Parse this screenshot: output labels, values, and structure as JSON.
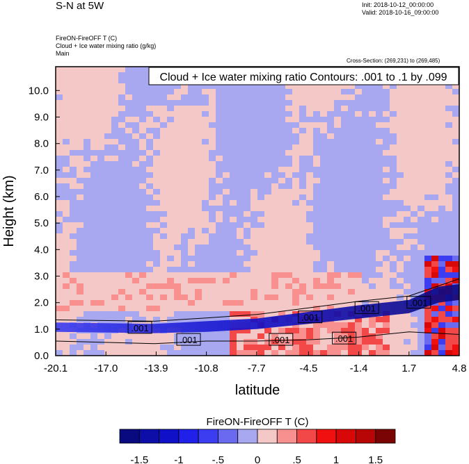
{
  "header": {
    "title": "S-N at 5W",
    "init": "Init: 2018-10-12_00:00:00",
    "valid": "Valid: 2018-10-16_09:00:00",
    "field_line_1": "FireON-FireOFF T   (C)",
    "field_line_2": "Cloud + Ice water mixing ratio   (g/kg)",
    "field_line_3": "Main",
    "cross_section": "Cross-Section: (269,231) to (269,485)"
  },
  "contour_info": "Cloud + Ice water mixing ratio Contours: .001 to .1 by .099",
  "colorbar": {
    "title": "FireON-FireOFF T  (C)",
    "colors": [
      "#0a0a80",
      "#0d0da8",
      "#1010c8",
      "#2020e8",
      "#3c3cf0",
      "#6a6af0",
      "#a8a8f0",
      "#f5c8c8",
      "#f89090",
      "#f24848",
      "#f01010",
      "#d80808",
      "#b80606",
      "#7a0303"
    ],
    "tick_labels": [
      "-1.5",
      "-1",
      "-.5",
      "0",
      ".5",
      "1",
      "1.5"
    ]
  },
  "chart_data": {
    "type": "heatmap",
    "title": "",
    "xlabel": "latitude",
    "ylabel": "Height (km)",
    "x_ticks": [
      "-20.1",
      "-17.0",
      "-13.9",
      "-10.8",
      "-7.7",
      "-4.5",
      "-1.4",
      "1.7",
      "4.8"
    ],
    "x_range": [
      -20.1,
      4.8
    ],
    "y_ticks": [
      "0.0",
      "1.0",
      "2.0",
      "3.0",
      "4.0",
      "5.0",
      "6.0",
      "7.0",
      "8.0",
      "9.0",
      "10.0"
    ],
    "y_range": [
      0.0,
      10.9
    ],
    "contour_labels": [
      {
        "text": ".001",
        "lat": -14.9,
        "height": 1.05
      },
      {
        "text": ".001",
        "lat": -11.9,
        "height": 0.6
      },
      {
        "text": ".001",
        "lat": -6.2,
        "height": 0.6
      },
      {
        "text": ".001",
        "lat": -4.4,
        "height": 1.45
      },
      {
        "text": ".001",
        "lat": -2.3,
        "height": 0.65
      },
      {
        "text": ".001",
        "lat": -0.9,
        "height": 1.8
      },
      {
        "text": ".001",
        "lat": 2.3,
        "height": 2.0
      }
    ]
  }
}
